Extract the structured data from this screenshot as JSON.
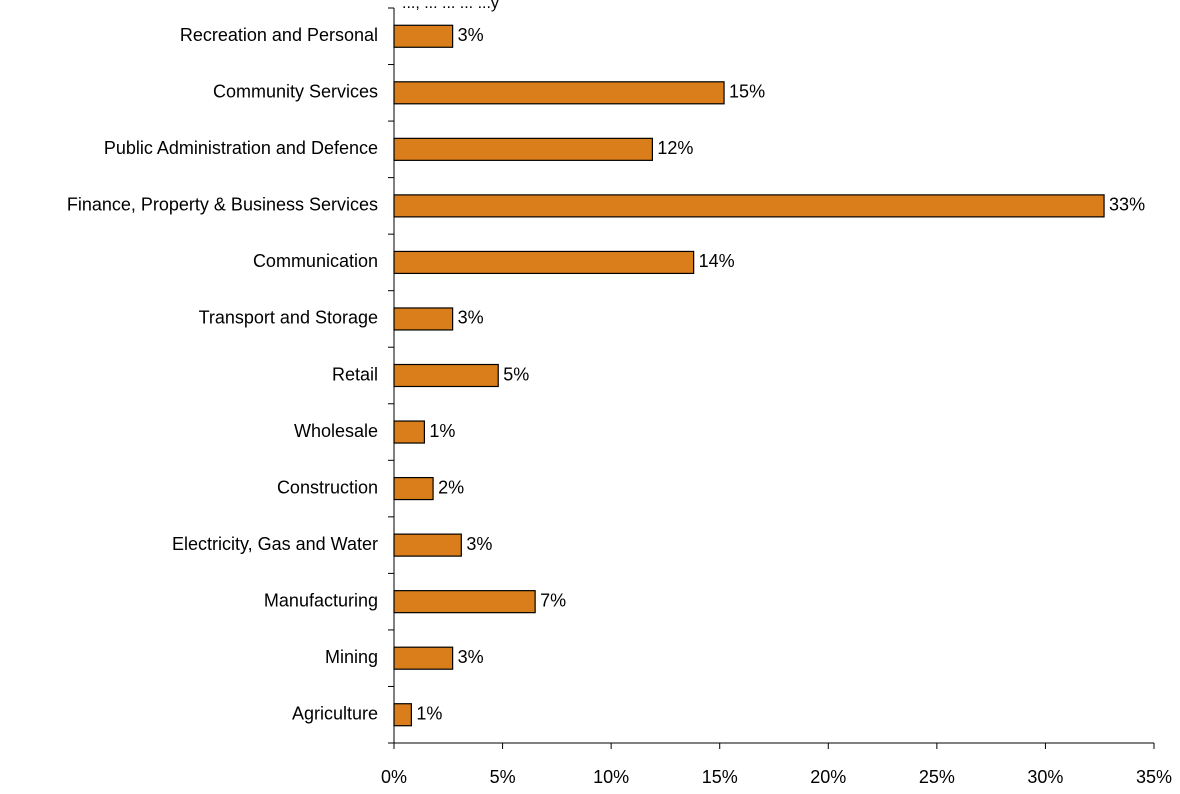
{
  "chart_data": {
    "type": "bar",
    "orientation": "horizontal",
    "title": "",
    "top_text_fragment": "..., ... ... ... ...y",
    "xlabel": "",
    "ylabel": "",
    "categories": [
      "Recreation and Personal",
      "Community Services",
      "Public Administration and Defence",
      "Finance, Property & Business Services",
      "Communication",
      "Transport and Storage",
      "Retail",
      "Wholesale",
      "Construction",
      "Electricity, Gas and Water",
      "Manufacturing",
      "Mining",
      "Agriculture"
    ],
    "values": [
      2.7,
      15.2,
      11.9,
      32.7,
      13.8,
      2.7,
      4.8,
      1.4,
      1.8,
      3.1,
      6.5,
      2.7,
      0.8
    ],
    "data_labels": [
      "3%",
      "15%",
      "12%",
      "33%",
      "14%",
      "3%",
      "5%",
      "1%",
      "2%",
      "3%",
      "7%",
      "3%",
      "1%"
    ],
    "xlim": [
      0,
      35
    ],
    "x_ticks": [
      0,
      5,
      10,
      15,
      20,
      25,
      30,
      35
    ],
    "x_tick_labels": [
      "0%",
      "5%",
      "10%",
      "15%",
      "20%",
      "25%",
      "30%",
      "35%"
    ],
    "bar_color": "#D97E1A",
    "bar_edge_color": "#000000",
    "grid": false,
    "legend": "none"
  }
}
